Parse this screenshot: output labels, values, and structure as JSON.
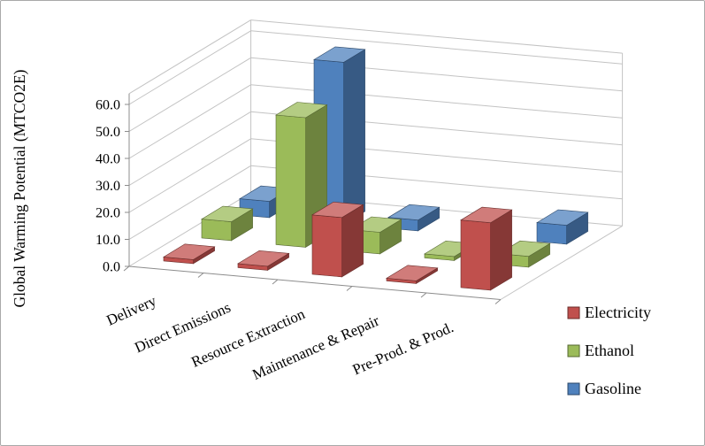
{
  "chart_data": {
    "type": "bar",
    "projection": "3d-column",
    "title": "",
    "ylabel": "Global Warming Potential (MTCO2E)",
    "ylim": [
      0,
      60
    ],
    "ytick_step": 10,
    "ytick_labels": [
      "0.0",
      "10.0",
      "20.0",
      "30.0",
      "40.0",
      "50.0",
      "60.0"
    ],
    "categories": [
      "Delivery",
      "Direct Emissions",
      "Resource Extraction",
      "Maintenance & Repair",
      "Pre-Prod. & Prod."
    ],
    "series": [
      {
        "name": "Electricity",
        "color": "#C0504D",
        "values": [
          1.5,
          1.5,
          22.0,
          1.0,
          25.0
        ]
      },
      {
        "name": "Ethanol",
        "color": "#9BBB59",
        "values": [
          7.0,
          48.0,
          8.0,
          1.5,
          4.0
        ]
      },
      {
        "name": "Gasoline",
        "color": "#4F81BD",
        "values": [
          6.0,
          60.0,
          4.0,
          0.0,
          7.0
        ]
      }
    ],
    "legend": {
      "position": "right",
      "entries": [
        "Electricity",
        "Ethanol",
        "Gasoline"
      ]
    },
    "grid": true,
    "gridline_color": "#C3C3C3",
    "axis_color": "#8C8C8C",
    "text_color": "#000000",
    "background": "#FFFFFF"
  }
}
